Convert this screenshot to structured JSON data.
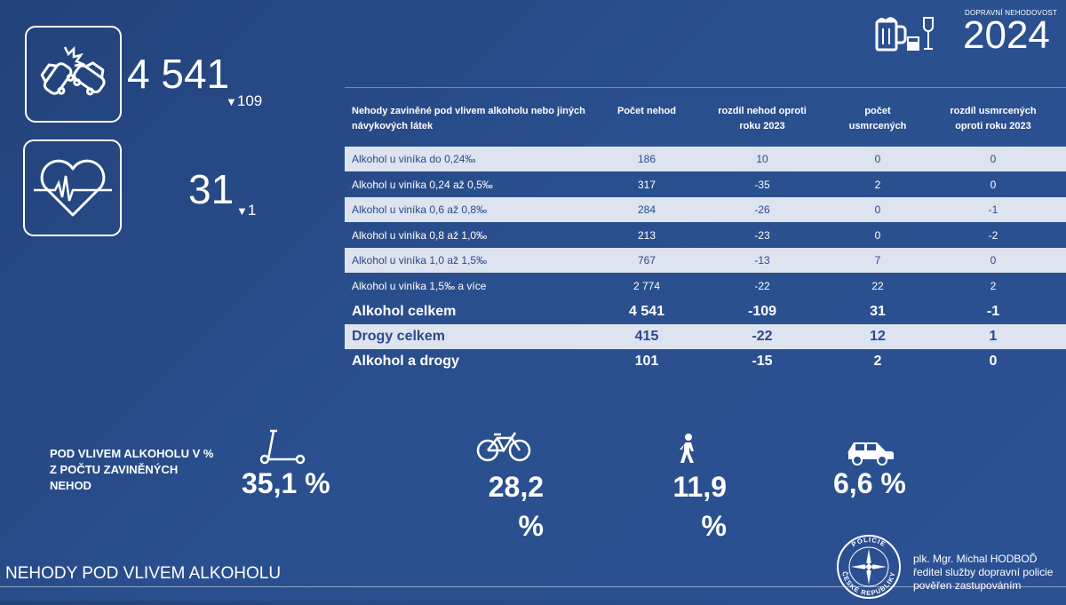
{
  "header": {
    "subtitle": "DOPRAVNÍ NEHODOVOST",
    "year": "2024"
  },
  "stats": {
    "accidents": {
      "value": "4 541",
      "arrow": "▼",
      "delta": "109"
    },
    "deaths": {
      "value": "31",
      "arrow": "▼",
      "delta": "1"
    }
  },
  "table": {
    "headers": [
      "Nehody zaviněné pod vlivem alkoholu nebo jiných návykových látek",
      "Počet nehod",
      "rozdíl nehod oproti roku 2023",
      "počet usmrcených",
      "rozdíl usmrcených oproti roku 2023"
    ],
    "rows": [
      {
        "label": "Alkohol u viníka do 0,24‰",
        "count": "186",
        "diff": "10",
        "deaths": "0",
        "deaths_diff": "0"
      },
      {
        "label": "Alkohol u viníka 0,24 až 0,5‰",
        "count": "317",
        "diff": "-35",
        "deaths": "2",
        "deaths_diff": "0"
      },
      {
        "label": "Alkohol u viníka 0,6 až 0,8‰",
        "count": "284",
        "diff": "-26",
        "deaths": "0",
        "deaths_diff": "-1"
      },
      {
        "label": "Alkohol u viníka 0,8 až 1,0‰",
        "count": "213",
        "diff": "-23",
        "deaths": "0",
        "deaths_diff": "-2"
      },
      {
        "label": "Alkohol u viníka 1,0 až 1,5‰",
        "count": "767",
        "diff": "-13",
        "deaths": "7",
        "deaths_diff": "0"
      },
      {
        "label": "Alkohol u viníka  1,5‰ a více",
        "count": "2 774",
        "diff": "-22",
        "deaths": "22",
        "deaths_diff": "2"
      },
      {
        "label": "Alkohol celkem",
        "count": "4 541",
        "diff": "-109",
        "deaths": "31",
        "deaths_diff": "-1"
      },
      {
        "label": "Drogy celkem",
        "count": "415",
        "diff": "-22",
        "deaths": "12",
        "deaths_diff": "1"
      },
      {
        "label": "Alkohol a drogy",
        "count": "101",
        "diff": "-15",
        "deaths": "2",
        "deaths_diff": "0"
      }
    ]
  },
  "percent_section": {
    "label": "POD VLIVEM ALKOHOLU V % Z POČTU ZAVINĚNÝCH NEHOD",
    "items": [
      {
        "icon": "scooter-icon",
        "value": "35,1 %"
      },
      {
        "icon": "bicycle-icon",
        "value": "28,2 %"
      },
      {
        "icon": "pedestrian-icon",
        "value": "11,9 %"
      },
      {
        "icon": "car-icon",
        "value": "6,6 %"
      }
    ]
  },
  "footer": {
    "title": "NEHODY POD VLIVEM ALKOHOLU",
    "seal_text": "POLICIE ČESKÉ REPUBLIKY",
    "signature": [
      "plk. Mgr. Michal HODBOĎ",
      "ředitel služby dopravní policie",
      "pověřen zastupováním"
    ]
  }
}
